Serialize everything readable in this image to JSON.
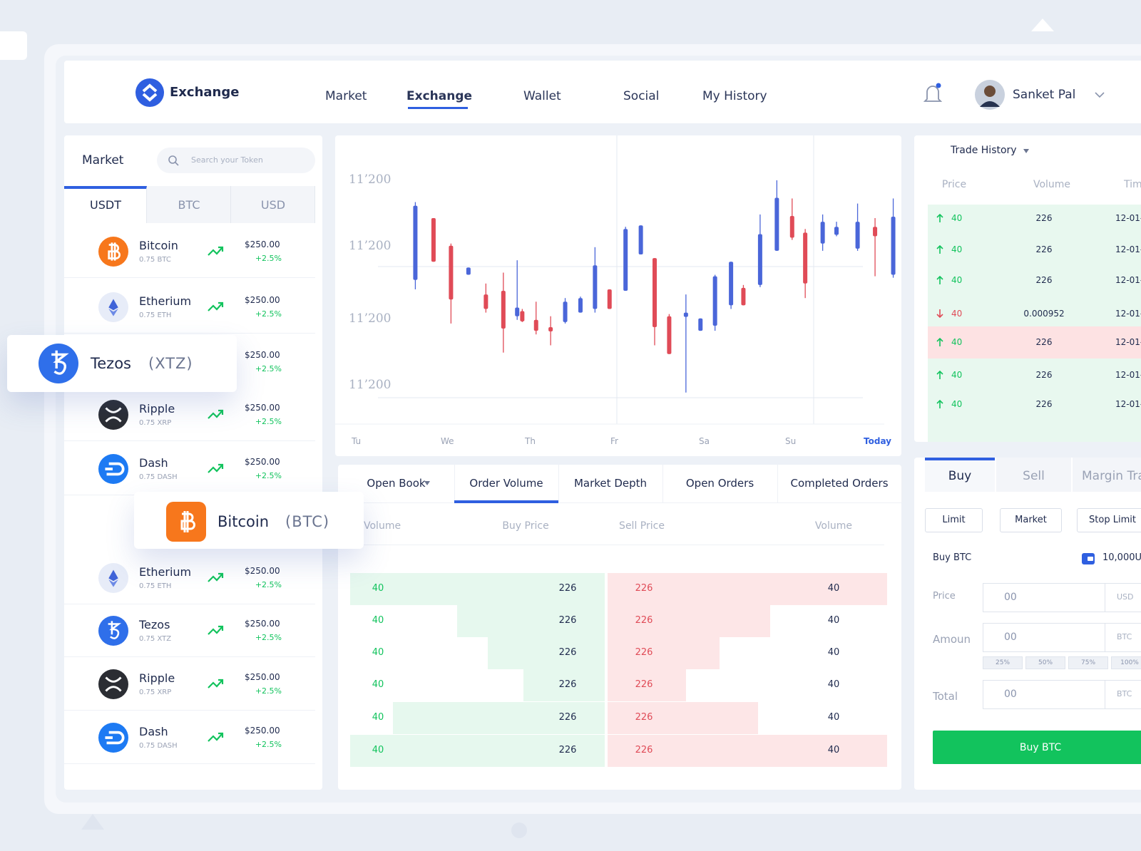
{
  "header": {
    "logo": "Exchange",
    "nav": [
      "Market",
      "Exchange",
      "Wallet",
      "Social",
      "My History"
    ],
    "user": "Sanket Pal"
  },
  "market": {
    "title": "Market",
    "search": "Search your Token",
    "tabs": [
      "USDT",
      "BTC",
      "USD"
    ],
    "coins": [
      {
        "name": "Bitcoin",
        "amount": "0.75 BTC",
        "price": "$250.00",
        "change": "+2.5%"
      },
      {
        "name": "Etherium",
        "amount": "0.75 ETH",
        "price": "$250.00",
        "change": "+2.5%"
      },
      {
        "name": "Ripple",
        "amount": "0.75 XRP",
        "price": "$250.00",
        "change": "+2.5%"
      },
      {
        "name": "Dash",
        "amount": "0.75 DASH",
        "price": "$250.00",
        "change": "+2.5%"
      },
      {
        "name": "Etherium",
        "amount": "0.75 ETH",
        "price": "$250.00",
        "change": "+2.5%"
      },
      {
        "name": "Tezos",
        "amount": "0.75 XTZ",
        "price": "$250.00",
        "change": "+2.5%"
      },
      {
        "name": "Ripple",
        "amount": "0.75 XRP",
        "price": "$250.00",
        "change": "+2.5%"
      },
      {
        "name": "Dash",
        "amount": "0.75 DASH",
        "price": "$250.00",
        "change": "+2.5%"
      }
    ],
    "hidden_prices": [
      {
        "price": "$250.00",
        "change": "+2.5%"
      }
    ]
  },
  "cards": [
    {
      "name": "Tezos",
      "symbol": "(XTZ)"
    },
    {
      "name": "Bitcoin",
      "symbol": "(BTC)"
    }
  ],
  "chart": {
    "y_labels": [
      "11’200",
      "11’200",
      "11’200",
      "11’200"
    ],
    "x_labels": [
      "Tu",
      "We",
      "Th",
      "Fr",
      "Sa",
      "Su",
      "Today"
    ]
  },
  "order_book": {
    "tabs": [
      "Open Book",
      "Order Volume",
      "Market Depth",
      "Open Orders",
      "Completed Orders"
    ],
    "columns": [
      "Volume",
      "Buy Price",
      "Sell Price",
      "Volume"
    ],
    "rows": [
      [
        40,
        226,
        226,
        40
      ],
      [
        40,
        226,
        226,
        40
      ],
      [
        40,
        226,
        226,
        40
      ],
      [
        40,
        226,
        226,
        40
      ],
      [
        40,
        226,
        226,
        40
      ],
      [
        40,
        226,
        226,
        40
      ]
    ]
  },
  "trade_history": {
    "title": "Trade History",
    "columns": [
      "Price",
      "Volume",
      "Tim"
    ],
    "rows": [
      {
        "price": 40,
        "volume": 226,
        "time": "12-01-"
      },
      {
        "price": 40,
        "volume": 226,
        "time": "12-01-"
      },
      {
        "price": 40,
        "volume": 226,
        "time": "12-01-"
      },
      {
        "price": 40,
        "volume": 0.000952,
        "time": "12-01-"
      },
      {
        "price": 40,
        "volume": 226,
        "time": "12-01-"
      },
      {
        "price": 40,
        "volume": 226,
        "time": "12-01-"
      },
      {
        "price": 40,
        "volume": 226,
        "time": "12-01-"
      }
    ]
  },
  "trade_form": {
    "tabs": [
      "Buy",
      "Sell",
      "Margin Tra"
    ],
    "order_types": [
      "Limit",
      "Market",
      "Stop Limit"
    ],
    "buy_label": "Buy BTC",
    "balance": "10,000US",
    "fields": [
      {
        "label": "Price",
        "value": "00",
        "unit": "USD"
      },
      {
        "label": "Amoun",
        "value": "00",
        "unit": "BTC"
      },
      {
        "label": "Total",
        "value": "00",
        "unit": "BTC"
      }
    ],
    "percents": [
      "25%",
      "50%",
      "75%",
      "100%"
    ],
    "button": "Buy BTC"
  }
}
